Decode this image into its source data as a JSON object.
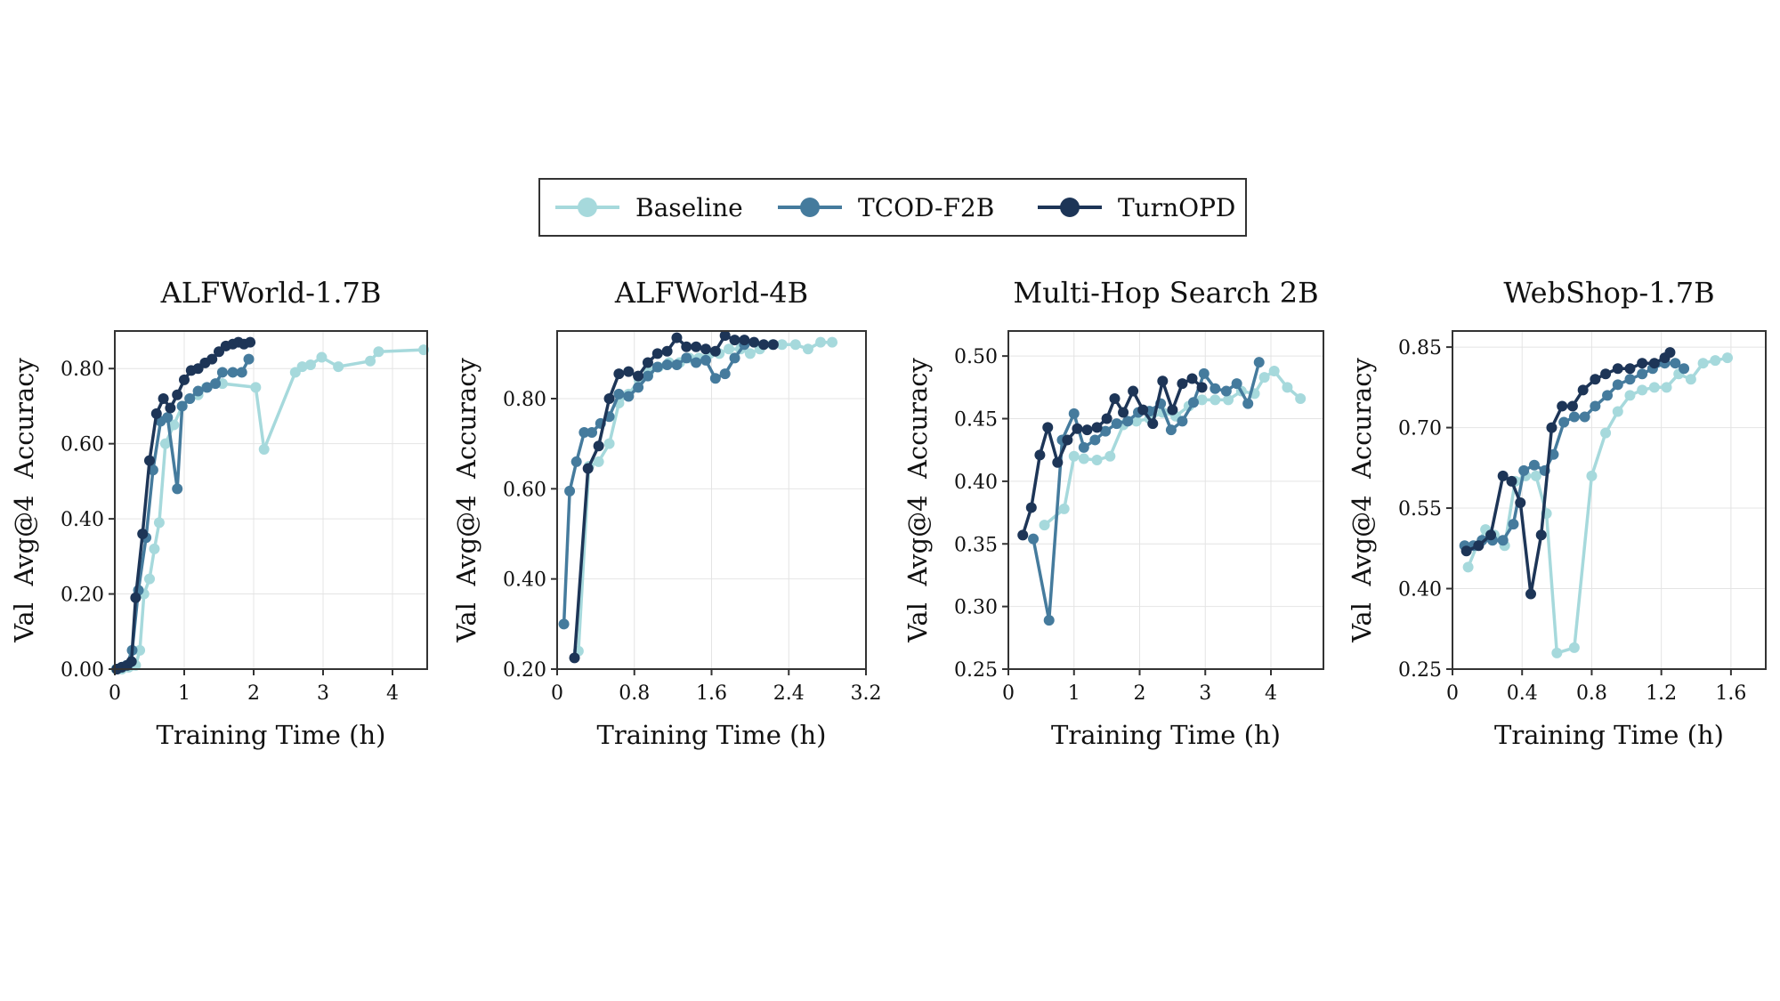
{
  "colors": {
    "Baseline": "#a6d9dc",
    "TCOD-F2B": "#457b9d",
    "TurnOPD": "#1d3557",
    "grid": "#e4e4e4",
    "frame": "#333333"
  },
  "legend": {
    "placement": "top-center",
    "items": [
      "Baseline",
      "TCOD-F2B",
      "TurnOPD"
    ]
  },
  "chart_data": [
    {
      "type": "line",
      "title": "ALFWorld-1.7B",
      "xlabel": "Training Time (h)",
      "ylabel": "Val  Avg@4  Accuracy",
      "xlim": [
        0,
        4.5
      ],
      "ylim": [
        0.0,
        0.9
      ],
      "xticks": [
        0,
        1,
        2,
        3,
        4
      ],
      "xtick_labels": [
        "0",
        "1",
        "2",
        "3",
        "4"
      ],
      "yticks": [
        0.0,
        0.2,
        0.4,
        0.6,
        0.8
      ],
      "ytick_labels": [
        "0.00",
        "0.20",
        "0.40",
        "0.60",
        "0.80"
      ],
      "grid": true,
      "series": [
        {
          "name": "Baseline",
          "x": [
            0.02,
            0.1,
            0.2,
            0.25,
            0.3,
            0.36,
            0.42,
            0.5,
            0.57,
            0.64,
            0.73,
            0.85,
            0.97,
            1.08,
            1.2,
            1.32,
            1.55,
            2.03,
            2.15,
            2.6,
            2.7,
            2.82,
            2.98,
            3.22,
            3.68,
            3.8,
            4.45
          ],
          "y": [
            0.0,
            0.0,
            0.005,
            0.01,
            0.01,
            0.05,
            0.2,
            0.24,
            0.32,
            0.39,
            0.6,
            0.65,
            0.7,
            0.72,
            0.73,
            0.75,
            0.76,
            0.75,
            0.585,
            0.79,
            0.805,
            0.81,
            0.83,
            0.805,
            0.82,
            0.845,
            0.85
          ]
        },
        {
          "name": "TCOD-F2B",
          "x": [
            0.03,
            0.1,
            0.17,
            0.25,
            0.34,
            0.45,
            0.55,
            0.66,
            0.76,
            0.9,
            0.97,
            1.08,
            1.2,
            1.33,
            1.45,
            1.55,
            1.7,
            1.83,
            1.93
          ],
          "y": [
            0.0,
            0.005,
            0.01,
            0.05,
            0.21,
            0.35,
            0.53,
            0.66,
            0.67,
            0.48,
            0.7,
            0.72,
            0.74,
            0.75,
            0.76,
            0.79,
            0.79,
            0.79,
            0.825
          ]
        },
        {
          "name": "TurnOPD",
          "x": [
            0.03,
            0.1,
            0.18,
            0.24,
            0.3,
            0.4,
            0.5,
            0.6,
            0.7,
            0.8,
            0.9,
            1.0,
            1.1,
            1.2,
            1.3,
            1.4,
            1.5,
            1.6,
            1.7,
            1.78,
            1.86,
            1.95
          ],
          "y": [
            0.0,
            0.005,
            0.01,
            0.02,
            0.19,
            0.36,
            0.555,
            0.68,
            0.72,
            0.695,
            0.73,
            0.77,
            0.795,
            0.8,
            0.815,
            0.825,
            0.845,
            0.86,
            0.865,
            0.87,
            0.865,
            0.87
          ]
        }
      ]
    },
    {
      "type": "line",
      "title": "ALFWorld-4B",
      "xlabel": "Training Time (h)",
      "ylabel": "Val  Avg@4  Accuracy",
      "xlim": [
        0,
        3.2
      ],
      "ylim": [
        0.2,
        0.95
      ],
      "xticks": [
        0,
        0.8,
        1.6,
        2.4,
        3.2
      ],
      "xtick_labels": [
        "0",
        "0.8",
        "1.6",
        "2.4",
        "3.2"
      ],
      "yticks": [
        0.2,
        0.4,
        0.6,
        0.8
      ],
      "ytick_labels": [
        "0.20",
        "0.40",
        "0.60",
        "0.80"
      ],
      "grid": true,
      "series": [
        {
          "name": "Baseline",
          "x": [
            0.22,
            0.33,
            0.43,
            0.54,
            0.64,
            0.74,
            0.85,
            0.95,
            1.05,
            1.16,
            1.27,
            1.37,
            1.47,
            1.58,
            1.68,
            1.78,
            1.9,
            2.0,
            2.1,
            2.23,
            2.33,
            2.47,
            2.6,
            2.73,
            2.85
          ],
          "y": [
            0.24,
            0.65,
            0.66,
            0.7,
            0.79,
            0.81,
            0.84,
            0.86,
            0.87,
            0.88,
            0.88,
            0.89,
            0.89,
            0.9,
            0.9,
            0.91,
            0.91,
            0.9,
            0.91,
            0.92,
            0.92,
            0.92,
            0.91,
            0.925,
            0.925
          ]
        },
        {
          "name": "TCOD-F2B",
          "x": [
            0.07,
            0.13,
            0.2,
            0.28,
            0.36,
            0.45,
            0.54,
            0.64,
            0.74,
            0.84,
            0.94,
            1.04,
            1.14,
            1.24,
            1.34,
            1.44,
            1.54,
            1.64,
            1.74,
            1.84,
            1.94
          ],
          "y": [
            0.3,
            0.595,
            0.66,
            0.725,
            0.725,
            0.745,
            0.76,
            0.81,
            0.805,
            0.825,
            0.85,
            0.87,
            0.875,
            0.875,
            0.89,
            0.88,
            0.885,
            0.845,
            0.855,
            0.89,
            0.92
          ]
        },
        {
          "name": "TurnOPD",
          "x": [
            0.18,
            0.32,
            0.43,
            0.54,
            0.64,
            0.74,
            0.84,
            0.94,
            1.04,
            1.14,
            1.24,
            1.34,
            1.44,
            1.54,
            1.64,
            1.74,
            1.84,
            1.94,
            2.04,
            2.14,
            2.24
          ],
          "y": [
            0.225,
            0.645,
            0.695,
            0.8,
            0.855,
            0.86,
            0.85,
            0.88,
            0.9,
            0.905,
            0.935,
            0.915,
            0.915,
            0.91,
            0.905,
            0.94,
            0.93,
            0.93,
            0.925,
            0.92,
            0.92
          ]
        }
      ]
    },
    {
      "type": "line",
      "title": "Multi-Hop Search 2B",
      "xlabel": "Training Time (h)",
      "ylabel": "Val  Avg@4  Accuracy",
      "xlim": [
        0,
        4.8
      ],
      "ylim": [
        0.25,
        0.52
      ],
      "xticks": [
        0,
        1,
        2,
        3,
        4
      ],
      "xtick_labels": [
        "0",
        "1",
        "2",
        "3",
        "4"
      ],
      "yticks": [
        0.25,
        0.3,
        0.35,
        0.4,
        0.45,
        0.5
      ],
      "ytick_labels": [
        "0.25",
        "0.30",
        "0.35",
        "0.40",
        "0.45",
        "0.50"
      ],
      "grid": true,
      "series": [
        {
          "name": "Baseline",
          "x": [
            0.55,
            0.85,
            1.0,
            1.15,
            1.35,
            1.55,
            1.75,
            1.95,
            2.15,
            2.35,
            2.55,
            2.75,
            2.95,
            3.15,
            3.35,
            3.55,
            3.75,
            3.9,
            4.05,
            4.25,
            4.45
          ],
          "y": [
            0.365,
            0.378,
            0.42,
            0.418,
            0.417,
            0.42,
            0.445,
            0.448,
            0.45,
            0.455,
            0.452,
            0.46,
            0.465,
            0.465,
            0.465,
            0.472,
            0.47,
            0.483,
            0.488,
            0.475,
            0.466
          ]
        },
        {
          "name": "TCOD-F2B",
          "x": [
            0.38,
            0.62,
            0.82,
            1.0,
            1.15,
            1.32,
            1.48,
            1.65,
            1.82,
            1.98,
            2.15,
            2.32,
            2.48,
            2.65,
            2.82,
            2.98,
            3.15,
            3.32,
            3.48,
            3.65,
            3.82
          ],
          "y": [
            0.354,
            0.289,
            0.433,
            0.454,
            0.427,
            0.433,
            0.44,
            0.446,
            0.448,
            0.455,
            0.456,
            0.462,
            0.441,
            0.448,
            0.463,
            0.486,
            0.474,
            0.472,
            0.478,
            0.462,
            0.495
          ]
        },
        {
          "name": "TurnOPD",
          "x": [
            0.22,
            0.35,
            0.48,
            0.6,
            0.75,
            0.9,
            1.05,
            1.2,
            1.35,
            1.5,
            1.62,
            1.75,
            1.9,
            2.05,
            2.2,
            2.35,
            2.5,
            2.65,
            2.8,
            2.95
          ],
          "y": [
            0.357,
            0.379,
            0.421,
            0.443,
            0.415,
            0.433,
            0.442,
            0.441,
            0.443,
            0.45,
            0.466,
            0.455,
            0.472,
            0.457,
            0.446,
            0.48,
            0.457,
            0.478,
            0.482,
            0.475
          ]
        }
      ]
    },
    {
      "type": "line",
      "title": "WebShop-1.7B",
      "xlabel": "Training Time (h)",
      "ylabel": "Val  Avg@4  Accuracy",
      "xlim": [
        0,
        1.8
      ],
      "ylim": [
        0.25,
        0.88
      ],
      "xticks": [
        0,
        0.4,
        0.8,
        1.2,
        1.6
      ],
      "xtick_labels": [
        "0",
        "0.4",
        "0.8",
        "1.2",
        "1.6"
      ],
      "yticks": [
        0.25,
        0.4,
        0.55,
        0.7,
        0.85
      ],
      "ytick_labels": [
        "0.25",
        "0.40",
        "0.55",
        "0.70",
        "0.85"
      ],
      "grid": true,
      "series": [
        {
          "name": "Baseline",
          "x": [
            0.09,
            0.14,
            0.19,
            0.24,
            0.3,
            0.36,
            0.42,
            0.48,
            0.54,
            0.6,
            0.7,
            0.8,
            0.88,
            0.95,
            1.02,
            1.09,
            1.16,
            1.23,
            1.3,
            1.37,
            1.44,
            1.51,
            1.58
          ],
          "y": [
            0.44,
            0.48,
            0.51,
            0.5,
            0.48,
            0.6,
            0.61,
            0.61,
            0.54,
            0.28,
            0.29,
            0.61,
            0.69,
            0.73,
            0.76,
            0.77,
            0.775,
            0.775,
            0.8,
            0.79,
            0.82,
            0.825,
            0.83
          ]
        },
        {
          "name": "TCOD-F2B",
          "x": [
            0.07,
            0.12,
            0.17,
            0.23,
            0.29,
            0.35,
            0.41,
            0.47,
            0.53,
            0.58,
            0.64,
            0.7,
            0.76,
            0.82,
            0.89,
            0.95,
            1.02,
            1.09,
            1.15,
            1.22,
            1.28,
            1.33
          ],
          "y": [
            0.48,
            0.48,
            0.49,
            0.49,
            0.49,
            0.52,
            0.62,
            0.63,
            0.62,
            0.65,
            0.71,
            0.72,
            0.72,
            0.74,
            0.76,
            0.78,
            0.79,
            0.8,
            0.81,
            0.82,
            0.82,
            0.81
          ]
        },
        {
          "name": "TurnOPD",
          "x": [
            0.08,
            0.15,
            0.22,
            0.29,
            0.34,
            0.39,
            0.45,
            0.51,
            0.57,
            0.63,
            0.69,
            0.75,
            0.82,
            0.88,
            0.95,
            1.02,
            1.09,
            1.16,
            1.22,
            1.25
          ],
          "y": [
            0.47,
            0.48,
            0.5,
            0.61,
            0.6,
            0.56,
            0.39,
            0.5,
            0.7,
            0.74,
            0.74,
            0.77,
            0.79,
            0.8,
            0.81,
            0.81,
            0.82,
            0.82,
            0.83,
            0.84
          ]
        }
      ]
    }
  ]
}
